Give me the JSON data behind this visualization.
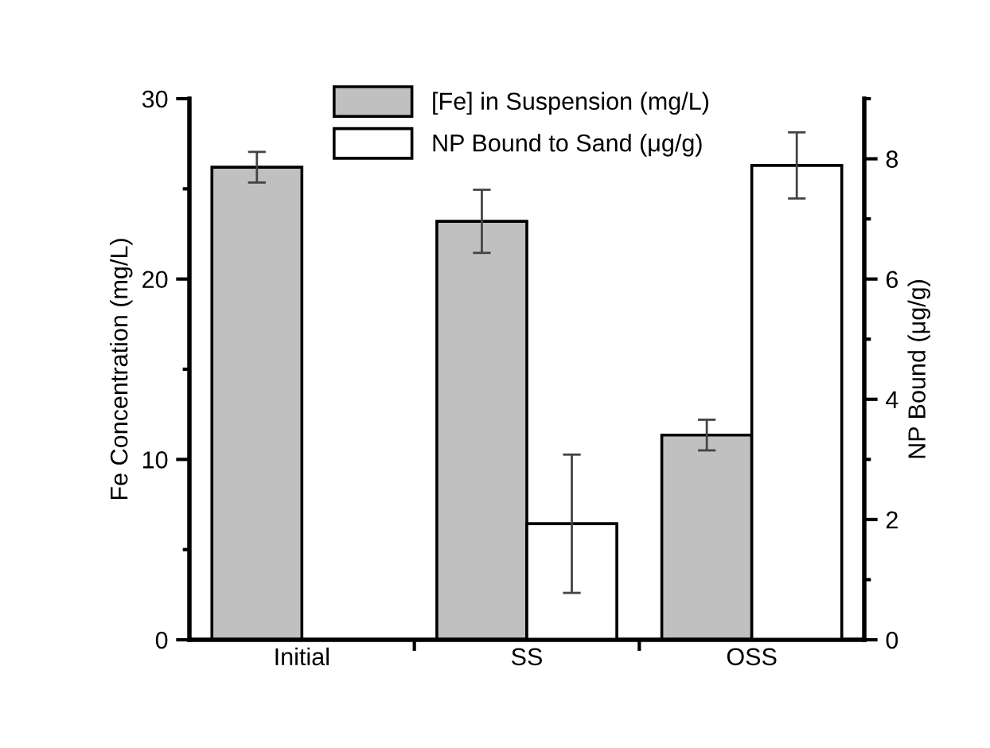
{
  "chart_data": {
    "type": "bar",
    "categories": [
      "Initial",
      "SS",
      "OSS"
    ],
    "ylabel": "Fe Concentration (mg/L)",
    "y2label": "NP Bound (μg/g)",
    "series": [
      {
        "name": "[Fe] in Suspension (mg/L)",
        "color": "#c0c0c0",
        "values": [
          26.2,
          23.2,
          11.35
        ],
        "errors": [
          0.85,
          1.75,
          0.85
        ]
      },
      {
        "name": "NP Bound to Sand (μg/g)",
        "color": "#ffffff",
        "axis": "y2",
        "values": [
          null,
          1.93,
          7.89
        ],
        "errors": [
          null,
          1.15,
          0.55
        ]
      }
    ],
    "ylim": [
      0,
      30
    ],
    "yticks": [
      0,
      10,
      20,
      30
    ],
    "y2lim": [
      0,
      9
    ],
    "y2ticks": [
      0,
      2,
      4,
      6,
      8
    ],
    "legend": "top left",
    "grid": false
  }
}
